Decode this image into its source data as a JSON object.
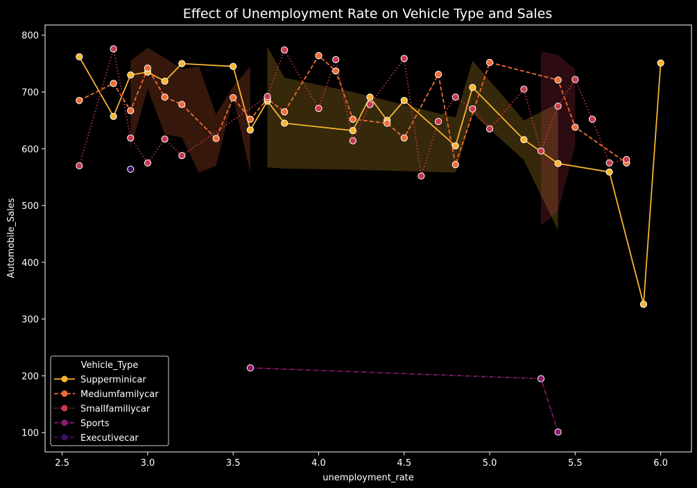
{
  "chart_data": {
    "type": "line",
    "title": "Effect of Unemployment Rate on Vehicle Type and Sales",
    "xlabel": "unemployment_rate",
    "ylabel": "Automobile_Sales",
    "xlim": [
      2.4,
      6.18
    ],
    "ylim": [
      66,
      818
    ],
    "xticks": [
      2.5,
      3.0,
      3.5,
      4.0,
      4.5,
      5.0,
      5.5,
      6.0
    ],
    "xtick_labels": [
      "2.5",
      "3.0",
      "3.5",
      "4.0",
      "4.5",
      "5.0",
      "5.5",
      "6.0"
    ],
    "yticks": [
      100,
      200,
      300,
      400,
      500,
      600,
      700,
      800
    ],
    "ytick_labels": [
      "100",
      "200",
      "300",
      "400",
      "500",
      "600",
      "700",
      "800"
    ],
    "grid": false,
    "legend": {
      "title": "Vehicle_Type",
      "placement": "lower-left"
    },
    "series": [
      {
        "name": "Supperminicar",
        "color": "#f8b52e",
        "dash": "solid",
        "x": [
          2.6,
          2.8,
          2.9,
          3.0,
          3.1,
          3.2,
          3.5,
          3.6,
          3.7,
          3.8,
          4.2,
          4.3,
          4.4,
          4.5,
          4.8,
          4.9,
          5.2,
          5.4,
          5.7,
          5.9,
          6.0
        ],
        "y": [
          762,
          657,
          730,
          735,
          719,
          750,
          745,
          633,
          684,
          645,
          632,
          691,
          650,
          685,
          605,
          708,
          616,
          574,
          559,
          326,
          751
        ],
        "band": {
          "x": [
            3.7,
            3.8,
            4.2,
            4.8,
            4.9,
            5.2,
            5.4
          ],
          "lo": [
            567,
            565,
            563,
            558,
            662,
            580,
            456
          ],
          "hi": [
            780,
            725,
            700,
            655,
            755,
            650,
            680
          ]
        }
      },
      {
        "name": "Mediumfamilycar",
        "color": "#f06b34",
        "dash": "dashed",
        "x": [
          2.6,
          2.8,
          2.9,
          3.0,
          3.1,
          3.2,
          3.4,
          3.5,
          3.6,
          3.7,
          3.8,
          4.0,
          4.1,
          4.2,
          4.4,
          4.5,
          4.7,
          4.8,
          5.0,
          5.4,
          5.5,
          5.8
        ],
        "y": [
          685,
          715,
          667,
          742,
          691,
          678,
          618,
          690,
          652,
          688,
          665,
          764,
          737,
          652,
          645,
          619,
          731,
          572,
          752,
          721,
          638,
          575
        ],
        "band": {
          "x": [
            2.9,
            3.0,
            3.1,
            3.2,
            3.3,
            3.4,
            3.5,
            3.6
          ],
          "lo": [
            600,
            705,
            625,
            620,
            558,
            570,
            690,
            558
          ],
          "hi": [
            755,
            778,
            760,
            740,
            745,
            660,
            710,
            745
          ]
        }
      },
      {
        "name": "Smallfamiliycar",
        "color": "#c9384f",
        "dash": "dotted",
        "x": [
          2.6,
          2.8,
          2.9,
          3.0,
          3.1,
          3.2,
          3.7,
          3.8,
          4.0,
          4.1,
          4.2,
          4.3,
          4.5,
          4.6,
          4.7,
          4.8,
          4.9,
          5.0,
          5.2,
          5.3,
          5.4,
          5.5,
          5.6,
          5.7,
          5.8
        ],
        "y": [
          570,
          776,
          619,
          575,
          617,
          588,
          692,
          774,
          671,
          757,
          614,
          678,
          759,
          552,
          648,
          691,
          670,
          635,
          705,
          596,
          675,
          722,
          652,
          575,
          581
        ],
        "band": {
          "x": [
            5.3,
            5.4,
            5.5
          ],
          "lo": [
            465,
            490,
            605
          ],
          "hi": [
            772,
            765,
            740
          ]
        }
      },
      {
        "name": "Sports",
        "color": "#8b1a6d",
        "dash": "dashdot",
        "x": [
          3.6,
          5.3,
          5.4
        ],
        "y": [
          214,
          195,
          101
        ]
      },
      {
        "name": "Executivecar",
        "color": "#3d0f62",
        "dash": "dashdot",
        "x": [
          2.9
        ],
        "y": [
          564
        ]
      }
    ]
  }
}
